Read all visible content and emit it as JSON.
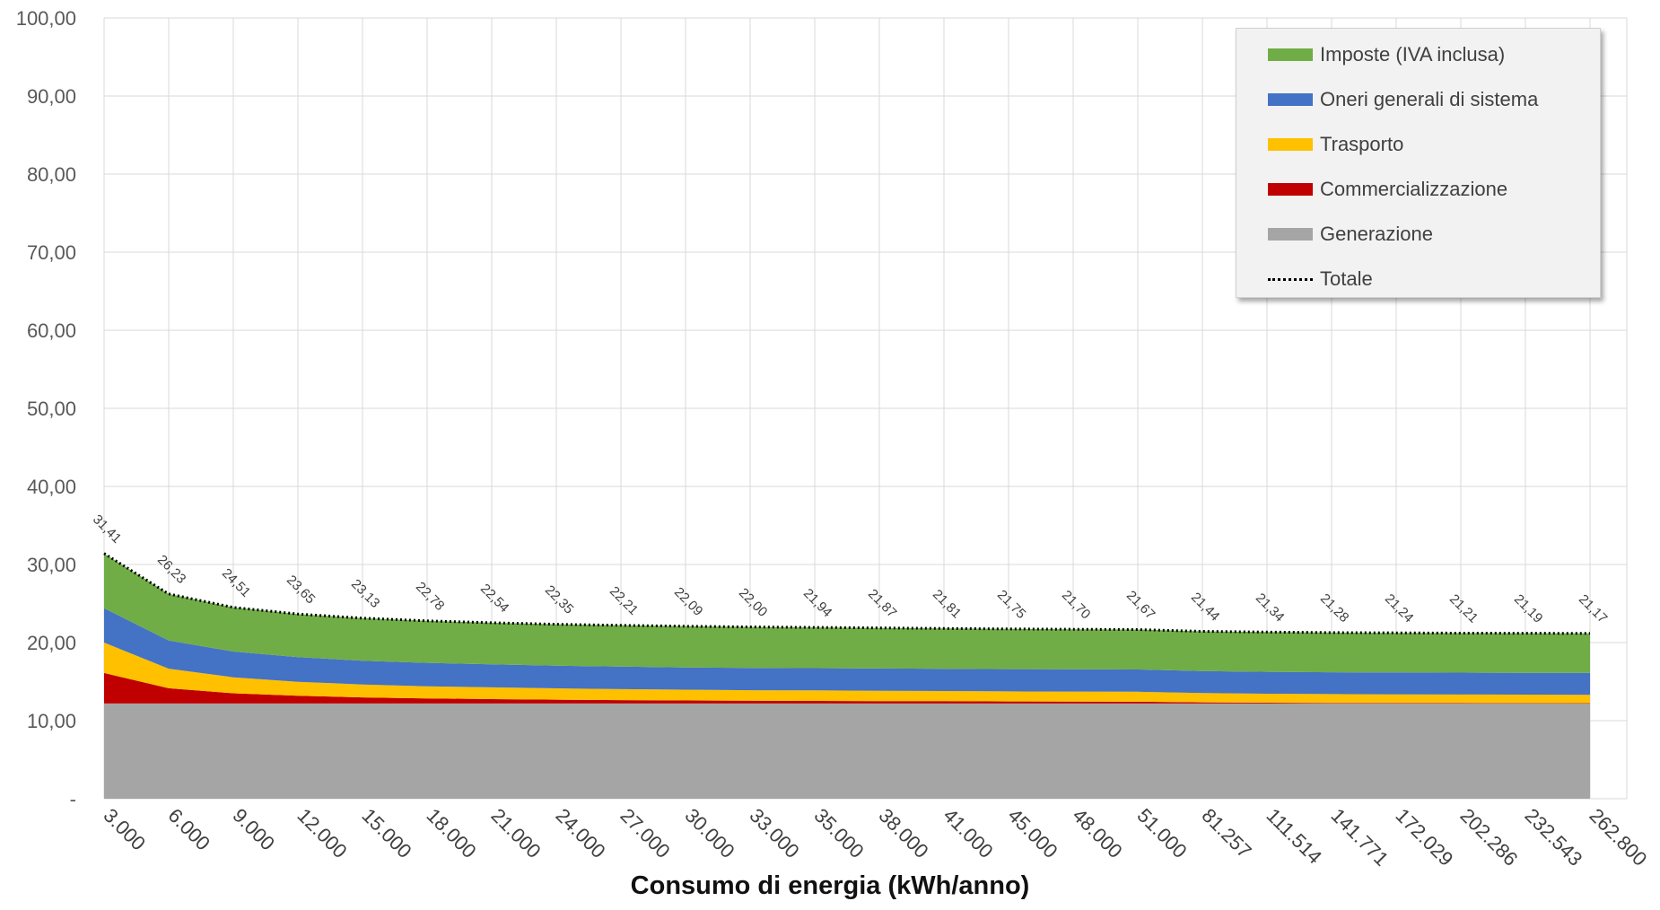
{
  "chart_data": {
    "type": "area",
    "stacked": true,
    "xlabel": "Consumo di energia (kWh/anno)",
    "ylabel": "",
    "ylim": [
      0,
      100
    ],
    "yticks": [
      "-",
      "10,00",
      "20,00",
      "30,00",
      "40,00",
      "50,00",
      "60,00",
      "70,00",
      "80,00",
      "90,00",
      "100,00"
    ],
    "grid": true,
    "legend_position": "top-right",
    "categories": [
      "3.000",
      "6.000",
      "9.000",
      "12.000",
      "15.000",
      "18.000",
      "21.000",
      "24.000",
      "27.000",
      "30.000",
      "33.000",
      "35.000",
      "38.000",
      "41.000",
      "45.000",
      "48.000",
      "51.000",
      "81.257",
      "111.514",
      "141.771",
      "172.029",
      "202.286",
      "232.543",
      "262.800"
    ],
    "series": [
      {
        "name": "Generazione",
        "color": "#a5a5a5",
        "values": [
          12.2,
          12.2,
          12.2,
          12.2,
          12.2,
          12.2,
          12.2,
          12.2,
          12.2,
          12.2,
          12.2,
          12.2,
          12.2,
          12.2,
          12.2,
          12.2,
          12.2,
          12.2,
          12.2,
          12.2,
          12.2,
          12.2,
          12.2,
          12.2
        ]
      },
      {
        "name": "Commercializzazione",
        "color": "#c00000",
        "values": [
          3.9,
          1.95,
          1.3,
          0.98,
          0.78,
          0.65,
          0.56,
          0.49,
          0.43,
          0.39,
          0.35,
          0.33,
          0.31,
          0.29,
          0.26,
          0.24,
          0.23,
          0.14,
          0.1,
          0.08,
          0.07,
          0.06,
          0.05,
          0.04
        ]
      },
      {
        "name": "Trasporto",
        "color": "#ffc000",
        "values": [
          3.9,
          2.5,
          2.05,
          1.8,
          1.65,
          1.55,
          1.5,
          1.45,
          1.4,
          1.37,
          1.35,
          1.34,
          1.32,
          1.3,
          1.29,
          1.28,
          1.27,
          1.2,
          1.15,
          1.12,
          1.1,
          1.09,
          1.08,
          1.07
        ]
      },
      {
        "name": "Oneri generali di sistema",
        "color": "#4472c4",
        "values": [
          4.4,
          3.6,
          3.3,
          3.15,
          3.05,
          3.0,
          2.95,
          2.9,
          2.9,
          2.85,
          2.85,
          2.85,
          2.85,
          2.85,
          2.85,
          2.85,
          2.85,
          2.8,
          2.8,
          2.8,
          2.8,
          2.8,
          2.8,
          2.8
        ]
      },
      {
        "name": "Imposte (IVA inclusa)",
        "color": "#70ad47",
        "values": [
          7.01,
          5.98,
          5.66,
          5.52,
          5.45,
          5.38,
          5.33,
          5.31,
          5.28,
          5.28,
          5.25,
          5.22,
          5.19,
          5.17,
          5.15,
          5.13,
          5.12,
          5.1,
          5.09,
          5.08,
          5.07,
          5.06,
          5.06,
          5.06
        ]
      }
    ],
    "total": {
      "name": "Totale",
      "values": [
        31.41,
        26.23,
        24.51,
        23.65,
        23.13,
        22.78,
        22.54,
        22.35,
        22.21,
        22.09,
        22.0,
        21.94,
        21.87,
        21.81,
        21.75,
        21.7,
        21.67,
        21.44,
        21.34,
        21.28,
        21.24,
        21.21,
        21.19,
        21.17
      ],
      "labels": [
        "31,41",
        "26,23",
        "24,51",
        "23,65",
        "23,13",
        "22,78",
        "22,54",
        "22,35",
        "22,21",
        "22,09",
        "22,00",
        "21,94",
        "21,87",
        "21,81",
        "21,75",
        "21,70",
        "21,67",
        "21,44",
        "21,34",
        "21,28",
        "21,24",
        "21,21",
        "21,19",
        "21,17"
      ]
    }
  },
  "legend": {
    "items": [
      {
        "label": "Imposte (IVA inclusa)",
        "color": "#70ad47",
        "kind": "swatch"
      },
      {
        "label": "Oneri generali di sistema",
        "color": "#4472c4",
        "kind": "swatch"
      },
      {
        "label": "Trasporto",
        "color": "#ffc000",
        "kind": "swatch"
      },
      {
        "label": "Commercializzazione",
        "color": "#c00000",
        "kind": "swatch"
      },
      {
        "label": "Generazione",
        "color": "#a5a5a5",
        "kind": "swatch"
      },
      {
        "label": "Totale",
        "color": "#000000",
        "kind": "dotted"
      }
    ]
  }
}
